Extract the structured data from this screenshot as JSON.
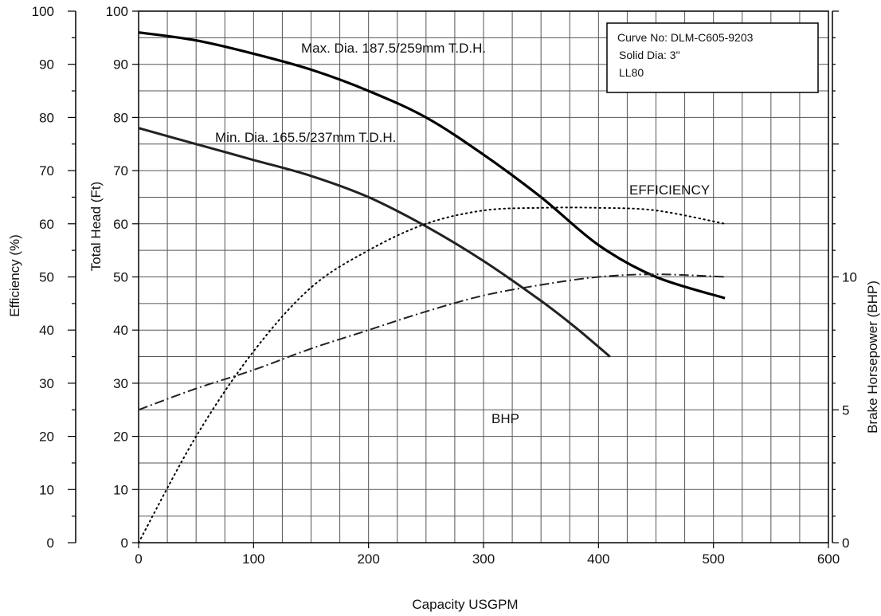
{
  "chart_data": {
    "type": "line",
    "xlabel": "Capacity USGPM",
    "ylabel": "Total Head (Ft)",
    "y2label": "Efficiency (%)",
    "y3label": "Brake Horsepower (BHP)",
    "xlim": [
      0,
      600
    ],
    "ylim": [
      0,
      100
    ],
    "y2lim": [
      0,
      100
    ],
    "y3lim": [
      0,
      20
    ],
    "grid": true,
    "x_ticks": [
      0,
      100,
      200,
      300,
      400,
      500,
      600
    ],
    "y_ticks": [
      0,
      10,
      20,
      30,
      40,
      50,
      60,
      70,
      80,
      90,
      100
    ],
    "y2_ticks": [
      0,
      10,
      20,
      30,
      40,
      50,
      60,
      70,
      80,
      90,
      100
    ],
    "y3_ticks": [
      0,
      5,
      10
    ],
    "info_box": [
      "Curve No: DLM-C605-9203",
      "Solid Dia: 3\"",
      "LL80"
    ],
    "series": [
      {
        "name": "Max. Dia. 187.5/259mm T.D.H.",
        "axis": "head",
        "style": "solid-thick",
        "x": [
          0,
          50,
          100,
          150,
          200,
          250,
          300,
          350,
          400,
          450,
          510
        ],
        "y": [
          96,
          94.5,
          92,
          89,
          85,
          80,
          73,
          65,
          56,
          50,
          46
        ]
      },
      {
        "name": "Min. Dia. 165.5/237mm T.D.H.",
        "axis": "head",
        "style": "solid",
        "x": [
          0,
          50,
          100,
          150,
          200,
          250,
          300,
          350,
          380,
          410
        ],
        "y": [
          78,
          75,
          72,
          69,
          65,
          59.5,
          53,
          45.5,
          40.5,
          35
        ]
      },
      {
        "name": "EFFICIENCY",
        "axis": "efficiency",
        "style": "dotted",
        "x": [
          0,
          50,
          100,
          150,
          200,
          250,
          300,
          350,
          400,
          450,
          510
        ],
        "y": [
          0,
          20,
          36,
          48,
          55,
          60,
          62.5,
          63,
          63,
          62.5,
          60
        ]
      },
      {
        "name": "BHP",
        "axis": "bhp",
        "style": "dashdot",
        "x": [
          0,
          50,
          100,
          150,
          200,
          250,
          300,
          350,
          400,
          450,
          510
        ],
        "y": [
          5,
          5.8,
          6.5,
          7.3,
          8,
          8.7,
          9.3,
          9.7,
          10,
          10.1,
          10
        ]
      }
    ]
  }
}
